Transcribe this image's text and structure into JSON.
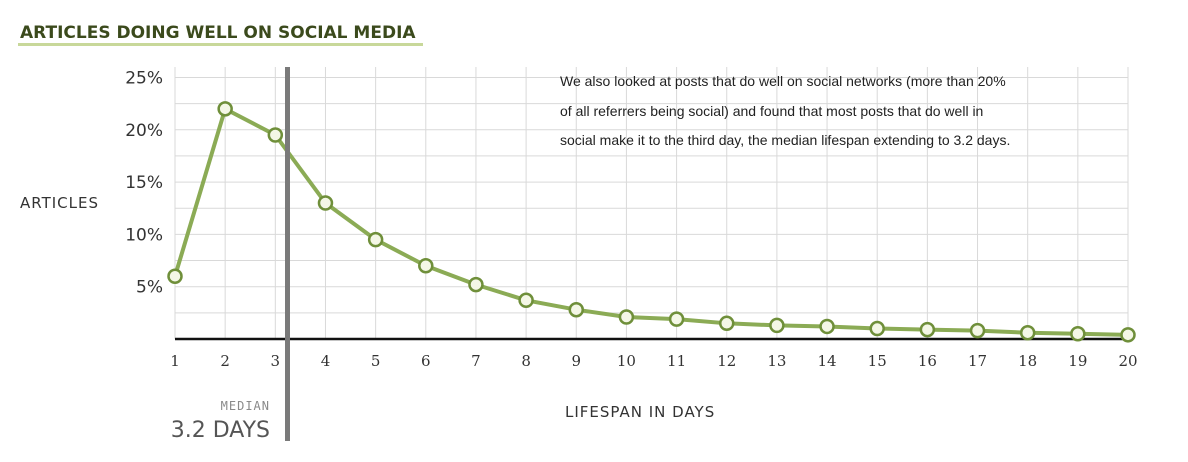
{
  "colors": {
    "title": "#3b4a1c",
    "title_underline": "#c8d89a",
    "line": "#8bab55",
    "marker_fill": "#f4f7e6",
    "marker_stroke": "#6f8f3a",
    "grid": "#d9d9d9",
    "axis": "#111111",
    "median_bar": "#7a7a7a"
  },
  "annotation": {
    "lines": [
      "We also looked at posts that do well on social networks (more than 20%",
      "of all referrers being social) and found that most posts that do well in",
      "social make it to the third day, the median lifespan extending to 3.2 days."
    ]
  },
  "median": {
    "label": "MEDIAN",
    "value_label": "3.2 DAYS",
    "value": 3.2
  },
  "chart_data": {
    "type": "line",
    "title": "ARTICLES DOING WELL ON SOCIAL MEDIA",
    "xlabel": "LIFESPAN IN DAYS",
    "ylabel": "ARTICLES",
    "x": [
      1,
      2,
      3,
      4,
      5,
      6,
      7,
      8,
      9,
      10,
      11,
      12,
      13,
      14,
      15,
      16,
      17,
      18,
      19,
      20
    ],
    "values": [
      6,
      22,
      19.5,
      13,
      9.5,
      7,
      5.2,
      3.7,
      2.8,
      2.1,
      1.9,
      1.5,
      1.3,
      1.2,
      1.0,
      0.9,
      0.8,
      0.6,
      0.5,
      0.4
    ],
    "x_ticks": [
      "1",
      "2",
      "3",
      "4",
      "5",
      "6",
      "7",
      "8",
      "9",
      "10",
      "11",
      "12",
      "13",
      "14",
      "15",
      "16",
      "17",
      "18",
      "19",
      "20"
    ],
    "y_ticks": [
      {
        "value": 5,
        "label": "5%"
      },
      {
        "value": 10,
        "label": "10%"
      },
      {
        "value": 15,
        "label": "15%"
      },
      {
        "value": 20,
        "label": "20%"
      },
      {
        "value": 25,
        "label": "25%"
      }
    ],
    "xlim": [
      1,
      20
    ],
    "ylim": [
      0,
      26
    ],
    "grid": true
  }
}
